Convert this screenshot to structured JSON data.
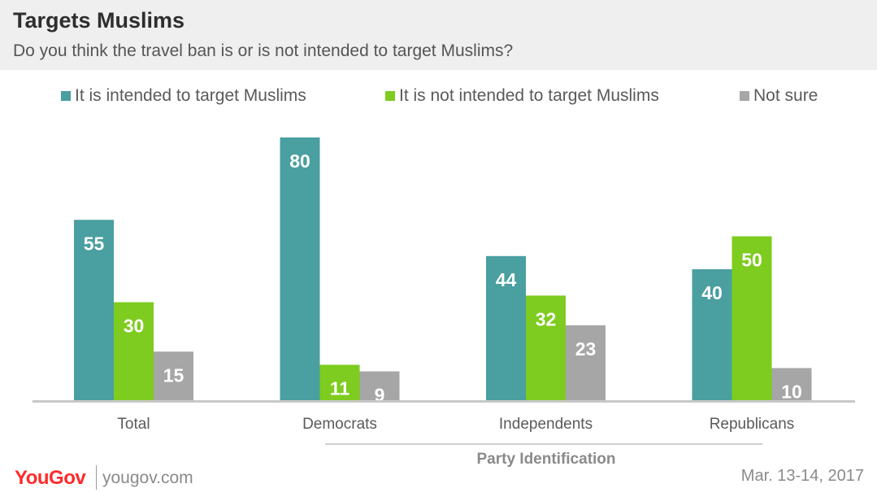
{
  "header": {
    "title": "Targets Muslims",
    "subtitle": "Do you think the travel ban is or is not intended to target Muslims?"
  },
  "colors": {
    "header_bg": "#efefef",
    "intended": "#4a9fa0",
    "not_intended": "#7dcc1f",
    "not_sure": "#a6a6a6",
    "brand": "#ff2a2a"
  },
  "chart_data": {
    "type": "bar",
    "categories": [
      "Total",
      "Democrats",
      "Independents",
      "Republicans"
    ],
    "series": [
      {
        "name": "It is intended to target Muslims",
        "values": [
          55,
          80,
          44,
          40
        ],
        "color": "#4a9fa0"
      },
      {
        "name": "It is not intended to target Muslims",
        "values": [
          30,
          11,
          32,
          50
        ],
        "color": "#7dcc1f"
      },
      {
        "name": "Not sure",
        "values": [
          15,
          9,
          23,
          10
        ],
        "color": "#a6a6a6"
      }
    ],
    "group_label": "Party Identification",
    "grouped_categories": [
      "Democrats",
      "Independents",
      "Republicans"
    ],
    "ylim": [
      0,
      80
    ],
    "data_labels": true,
    "grid": false,
    "legend_position": "top"
  },
  "footer": {
    "logo": "YouGov",
    "url": "yougov.com",
    "date": "Mar. 13-14, 2017"
  }
}
